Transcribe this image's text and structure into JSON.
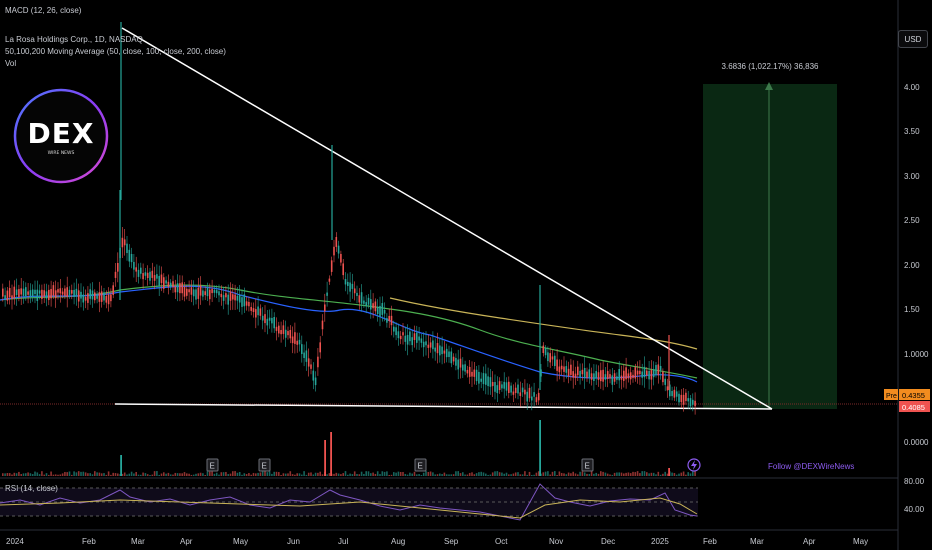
{
  "header": {
    "macd_label": "MACD (12, 26, close)",
    "symbol_line": "La Rosa Holdings Corp., 1D, NASDAQ",
    "ma_line": "50,100,200 Moving Average (50, close, 100, close, 200, close)",
    "vol_label": "Vol"
  },
  "currency_button": "USD",
  "logo": {
    "brand": "DEX",
    "sub": "WIRE NEWS"
  },
  "measure_label": "3.6836 (1,022.17%) 36,836",
  "follow_text": "Follow @DEXWireNews",
  "rsi_label": "RSI (14, close)",
  "price_axis": [
    "4.00",
    "3.50",
    "3.00",
    "2.50",
    "2.00",
    "1.50",
    "1.0000",
    "0.0000"
  ],
  "rsi_axis": [
    "80.00",
    "40.00"
  ],
  "time_axis": [
    "2024",
    "Feb",
    "Mar",
    "Apr",
    "May",
    "Jun",
    "Jul",
    "Aug",
    "Sep",
    "Oct",
    "Nov",
    "Dec",
    "2025",
    "Feb",
    "Mar",
    "Apr",
    "May"
  ],
  "price_badges": {
    "pre_label": "Pre",
    "pre_value": "0.4355",
    "last_value": "0.4085"
  },
  "event_markers": [
    "E",
    "E",
    "E",
    "E"
  ],
  "colors": {
    "background": "#000000",
    "up_candle": "#26a69a",
    "down_candle": "#ef5350",
    "ma50": "#2962ff",
    "ma100": "#4caf50",
    "ma200": "#c9b458",
    "trendline": "#ffffff",
    "target_zone": "#0b2a14",
    "rsi_line": "#7e57c2",
    "rsi_ma": "#c9b458",
    "follow": "#8d5cf0",
    "pre_badge": "#f28c1f",
    "last_badge": "#ef5350"
  },
  "icons": [
    "flash-icon"
  ]
}
